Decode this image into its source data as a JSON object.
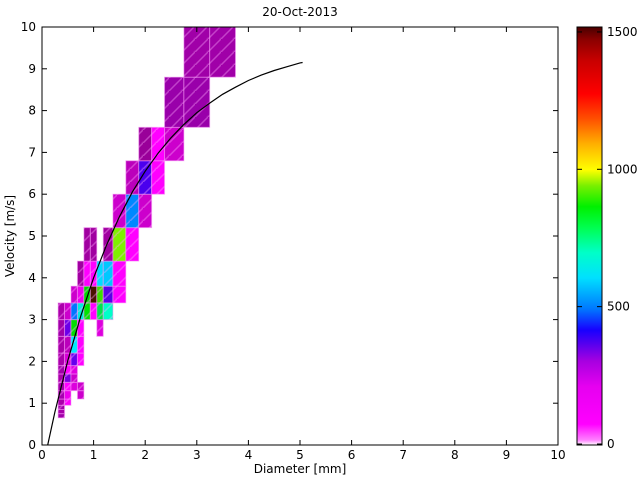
{
  "chart_data": {
    "type": "heatmap",
    "title": "20-Oct-2013",
    "xlabel": "Diameter [mm]",
    "ylabel": "Velocity [m/s]",
    "xlim": [
      0,
      10
    ],
    "ylim": [
      0,
      10
    ],
    "x_ticks": [
      0,
      1,
      2,
      3,
      4,
      5,
      6,
      7,
      8,
      9,
      10
    ],
    "y_ticks": [
      0,
      1,
      2,
      3,
      4,
      5,
      6,
      7,
      8,
      9,
      10
    ],
    "grid": false,
    "legend": "none",
    "colorbar": {
      "position": "right",
      "ticks": [
        0,
        500,
        1000,
        1500
      ],
      "min": 0,
      "max": 1500,
      "gradient_stops": [
        {
          "t": 0.0,
          "c": "#FFFFFF"
        },
        {
          "t": 0.012,
          "c": "#FF80FF"
        },
        {
          "t": 0.05,
          "c": "#FF00FF"
        },
        {
          "t": 0.14,
          "c": "#E600F0"
        },
        {
          "t": 0.2,
          "c": "#A800E0"
        },
        {
          "t": 0.245,
          "c": "#5000F0"
        },
        {
          "t": 0.275,
          "c": "#1800FF"
        },
        {
          "t": 0.325,
          "c": "#0077FF"
        },
        {
          "t": 0.4,
          "c": "#00E0FF"
        },
        {
          "t": 0.46,
          "c": "#00FFC8"
        },
        {
          "t": 0.52,
          "c": "#00FF50"
        },
        {
          "t": 0.57,
          "c": "#00F000"
        },
        {
          "t": 0.62,
          "c": "#78F000"
        },
        {
          "t": 0.658,
          "c": "#FFFF00"
        },
        {
          "t": 0.72,
          "c": "#FFB000"
        },
        {
          "t": 0.78,
          "c": "#FF5000"
        },
        {
          "t": 0.84,
          "c": "#FF0000"
        },
        {
          "t": 0.92,
          "c": "#C80000"
        },
        {
          "t": 0.97,
          "c": "#8B0000"
        },
        {
          "t": 1.0,
          "c": "#4A0000"
        }
      ]
    },
    "diameter_bin_edges": [
      0.312,
      0.437,
      0.562,
      0.687,
      0.812,
      0.937,
      1.062,
      1.187,
      1.375,
      1.625,
      1.875,
      2.125,
      2.375,
      2.75,
      3.25,
      3.75
    ],
    "velocity_bin_edges": [
      0.65,
      0.75,
      0.85,
      0.95,
      1.1,
      1.3,
      1.5,
      1.7,
      1.9,
      2.2,
      2.6,
      3.0,
      3.4,
      3.8,
      4.4,
      5.2,
      6.0,
      6.8,
      7.6,
      8.8,
      10.0
    ],
    "cells": [
      {
        "d": [
          0.312,
          0.437
        ],
        "v": [
          0.65,
          0.75
        ],
        "c": "#A000A8"
      },
      {
        "d": [
          0.312,
          0.437
        ],
        "v": [
          0.75,
          0.85
        ],
        "c": "#AA00AA"
      },
      {
        "d": [
          0.312,
          0.437
        ],
        "v": [
          0.85,
          0.95
        ],
        "c": "#A000A8"
      },
      {
        "d": [
          0.312,
          0.437
        ],
        "v": [
          0.95,
          1.1
        ],
        "c": "#AA00AA"
      },
      {
        "d": [
          0.312,
          0.437
        ],
        "v": [
          1.1,
          1.3
        ],
        "c": "#A800B0"
      },
      {
        "d": [
          0.312,
          0.437
        ],
        "v": [
          1.3,
          1.5
        ],
        "c": "#A000A8"
      },
      {
        "d": [
          0.312,
          0.437
        ],
        "v": [
          1.5,
          1.7
        ],
        "c": "#AA00AA"
      },
      {
        "d": [
          0.312,
          0.437
        ],
        "v": [
          1.7,
          1.9
        ],
        "c": "#A000A8"
      },
      {
        "d": [
          0.312,
          0.437
        ],
        "v": [
          1.9,
          2.2
        ],
        "c": "#AA00AA"
      },
      {
        "d": [
          0.312,
          0.437
        ],
        "v": [
          2.2,
          2.6
        ],
        "c": "#A800A8"
      },
      {
        "d": [
          0.312,
          0.437
        ],
        "v": [
          2.6,
          3.0
        ],
        "c": "#A000A8"
      },
      {
        "d": [
          0.312,
          0.437
        ],
        "v": [
          3.0,
          3.4
        ],
        "c": "#AA00AA"
      },
      {
        "d": [
          0.437,
          0.562
        ],
        "v": [
          0.95,
          1.1
        ],
        "c": "#FF00FF"
      },
      {
        "d": [
          0.437,
          0.562
        ],
        "v": [
          1.1,
          1.3
        ],
        "c": "#EE00EE"
      },
      {
        "d": [
          0.437,
          0.562
        ],
        "v": [
          1.3,
          1.5
        ],
        "c": "#FF00FF"
      },
      {
        "d": [
          0.437,
          0.562
        ],
        "v": [
          1.5,
          1.7
        ],
        "c": "#7A00DC"
      },
      {
        "d": [
          0.437,
          0.562
        ],
        "v": [
          1.7,
          1.9
        ],
        "c": "#FF00FF"
      },
      {
        "d": [
          0.437,
          0.562
        ],
        "v": [
          1.9,
          2.2
        ],
        "c": "#D800D8"
      },
      {
        "d": [
          0.437,
          0.562
        ],
        "v": [
          2.2,
          2.6
        ],
        "c": "#BB00BB"
      },
      {
        "d": [
          0.437,
          0.562
        ],
        "v": [
          2.6,
          3.0
        ],
        "c": "#6A00E8"
      },
      {
        "d": [
          0.437,
          0.562
        ],
        "v": [
          3.0,
          3.4
        ],
        "c": "#CC00CC"
      },
      {
        "d": [
          0.562,
          0.687
        ],
        "v": [
          1.3,
          1.5
        ],
        "c": "#DD00DD"
      },
      {
        "d": [
          0.562,
          0.687
        ],
        "v": [
          1.5,
          1.7
        ],
        "c": "#CC00CC"
      },
      {
        "d": [
          0.562,
          0.687
        ],
        "v": [
          1.7,
          1.9
        ],
        "c": "#E000E0"
      },
      {
        "d": [
          0.562,
          0.687
        ],
        "v": [
          1.9,
          2.2
        ],
        "c": "#6600EE"
      },
      {
        "d": [
          0.562,
          0.687
        ],
        "v": [
          2.2,
          2.6
        ],
        "c": "#00E8FF"
      },
      {
        "d": [
          0.562,
          0.687
        ],
        "v": [
          2.6,
          3.0
        ],
        "c": "#00DD00"
      },
      {
        "d": [
          0.562,
          0.687
        ],
        "v": [
          3.0,
          3.4
        ],
        "c": "#0077FF"
      },
      {
        "d": [
          0.562,
          0.687
        ],
        "v": [
          3.4,
          3.8
        ],
        "c": "#CC00CC"
      },
      {
        "d": [
          0.687,
          0.812
        ],
        "v": [
          1.1,
          1.3
        ],
        "c": "#CC00CC"
      },
      {
        "d": [
          0.687,
          0.812
        ],
        "v": [
          1.3,
          1.5
        ],
        "c": "#CC00CC"
      },
      {
        "d": [
          0.687,
          0.812
        ],
        "v": [
          1.9,
          2.2
        ],
        "c": "#FF00FF"
      },
      {
        "d": [
          0.687,
          0.812
        ],
        "v": [
          2.2,
          2.6
        ],
        "c": "#FF00FF"
      },
      {
        "d": [
          0.687,
          0.812
        ],
        "v": [
          2.6,
          3.0
        ],
        "c": "#FF00FF"
      },
      {
        "d": [
          0.687,
          0.812
        ],
        "v": [
          3.0,
          3.4
        ],
        "c": "#00EEDD"
      },
      {
        "d": [
          0.687,
          0.812
        ],
        "v": [
          3.4,
          3.8
        ],
        "c": "#EE00EE"
      },
      {
        "d": [
          0.687,
          0.812
        ],
        "v": [
          3.8,
          4.4
        ],
        "c": "#A000A0"
      },
      {
        "d": [
          0.812,
          0.937
        ],
        "v": [
          3.0,
          3.4
        ],
        "c": "#00E400"
      },
      {
        "d": [
          0.812,
          0.937
        ],
        "v": [
          3.4,
          3.8
        ],
        "c": "#00D800"
      },
      {
        "d": [
          0.812,
          0.937
        ],
        "v": [
          3.8,
          4.4
        ],
        "c": "#FF00FF"
      },
      {
        "d": [
          0.812,
          0.937
        ],
        "v": [
          4.4,
          5.2
        ],
        "c": "#A000A0"
      },
      {
        "d": [
          0.937,
          1.062
        ],
        "v": [
          3.0,
          3.4
        ],
        "c": "#FF00FF"
      },
      {
        "d": [
          0.937,
          1.062
        ],
        "v": [
          3.4,
          3.8
        ],
        "c": "#4A1200"
      },
      {
        "d": [
          0.937,
          1.062
        ],
        "v": [
          3.8,
          4.4
        ],
        "c": "#FF00FF"
      },
      {
        "d": [
          0.937,
          1.062
        ],
        "v": [
          4.4,
          5.2
        ],
        "c": "#A000A0"
      },
      {
        "d": [
          1.062,
          1.187
        ],
        "v": [
          2.6,
          3.0
        ],
        "c": "#DD00DD"
      },
      {
        "d": [
          1.062,
          1.187
        ],
        "v": [
          3.0,
          3.4
        ],
        "c": "#00E44A"
      },
      {
        "d": [
          1.062,
          1.187
        ],
        "v": [
          3.4,
          3.8
        ],
        "c": "#3CDC00"
      },
      {
        "d": [
          1.062,
          1.187
        ],
        "v": [
          3.8,
          4.4
        ],
        "c": "#00DCFF"
      },
      {
        "d": [
          1.187,
          1.375
        ],
        "v": [
          3.0,
          3.4
        ],
        "c": "#00FFC8"
      },
      {
        "d": [
          1.187,
          1.375
        ],
        "v": [
          3.4,
          3.8
        ],
        "c": "#5A00E6"
      },
      {
        "d": [
          1.187,
          1.375
        ],
        "v": [
          3.8,
          4.4
        ],
        "c": "#00C8FF"
      },
      {
        "d": [
          1.187,
          1.375
        ],
        "v": [
          4.4,
          5.2
        ],
        "c": "#A000A0"
      },
      {
        "d": [
          1.375,
          1.625
        ],
        "v": [
          3.4,
          3.8
        ],
        "c": "#FF00FF"
      },
      {
        "d": [
          1.375,
          1.625
        ],
        "v": [
          3.8,
          4.4
        ],
        "c": "#FF00FF"
      },
      {
        "d": [
          1.375,
          1.625
        ],
        "v": [
          4.4,
          5.2
        ],
        "c": "#7FF000"
      },
      {
        "d": [
          1.375,
          1.625
        ],
        "v": [
          5.2,
          6.0
        ],
        "c": "#CC00CC"
      },
      {
        "d": [
          1.625,
          1.875
        ],
        "v": [
          4.4,
          5.2
        ],
        "c": "#FF00FF"
      },
      {
        "d": [
          1.625,
          1.875
        ],
        "v": [
          5.2,
          6.0
        ],
        "c": "#0088FF"
      },
      {
        "d": [
          1.625,
          1.875
        ],
        "v": [
          6.0,
          6.8
        ],
        "c": "#BB00BB"
      },
      {
        "d": [
          1.875,
          2.125
        ],
        "v": [
          5.2,
          6.0
        ],
        "c": "#CC00CC"
      },
      {
        "d": [
          1.875,
          2.125
        ],
        "v": [
          6.0,
          6.8
        ],
        "c": "#4A00EE"
      },
      {
        "d": [
          1.875,
          2.125
        ],
        "v": [
          6.8,
          7.6
        ],
        "c": "#990099"
      },
      {
        "d": [
          2.125,
          2.375
        ],
        "v": [
          6.0,
          6.8
        ],
        "c": "#FF00FF"
      },
      {
        "d": [
          2.125,
          2.375
        ],
        "v": [
          6.8,
          7.6
        ],
        "c": "#FF00FF"
      },
      {
        "d": [
          2.375,
          2.75
        ],
        "v": [
          6.8,
          7.6
        ],
        "c": "#CC00CC"
      },
      {
        "d": [
          2.375,
          2.75
        ],
        "v": [
          7.6,
          8.8
        ],
        "c": "#9900AA"
      },
      {
        "d": [
          2.75,
          3.25
        ],
        "v": [
          7.6,
          8.8
        ],
        "c": "#9900AA"
      },
      {
        "d": [
          2.75,
          3.25
        ],
        "v": [
          8.8,
          10.0
        ],
        "c": "#A000A8"
      },
      {
        "d": [
          3.25,
          3.75
        ],
        "v": [
          8.8,
          10.0
        ],
        "c": "#A000A8"
      }
    ],
    "curve": {
      "name": "terminal-velocity-curve",
      "color": "#000000",
      "points": [
        [
          0.11,
          0
        ],
        [
          0.25,
          0.79
        ],
        [
          0.5,
          2.02
        ],
        [
          0.75,
          3.08
        ],
        [
          1.0,
          4.0
        ],
        [
          1.25,
          4.78
        ],
        [
          1.5,
          5.46
        ],
        [
          1.75,
          6.05
        ],
        [
          2.0,
          6.55
        ],
        [
          2.25,
          6.98
        ],
        [
          2.5,
          7.35
        ],
        [
          2.75,
          7.67
        ],
        [
          3.0,
          7.95
        ],
        [
          3.25,
          8.18
        ],
        [
          3.5,
          8.39
        ],
        [
          3.75,
          8.56
        ],
        [
          4.0,
          8.72
        ],
        [
          4.25,
          8.85
        ],
        [
          4.5,
          8.96
        ],
        [
          4.75,
          9.05
        ],
        [
          5.0,
          9.14
        ],
        [
          5.05,
          9.15
        ]
      ]
    }
  }
}
